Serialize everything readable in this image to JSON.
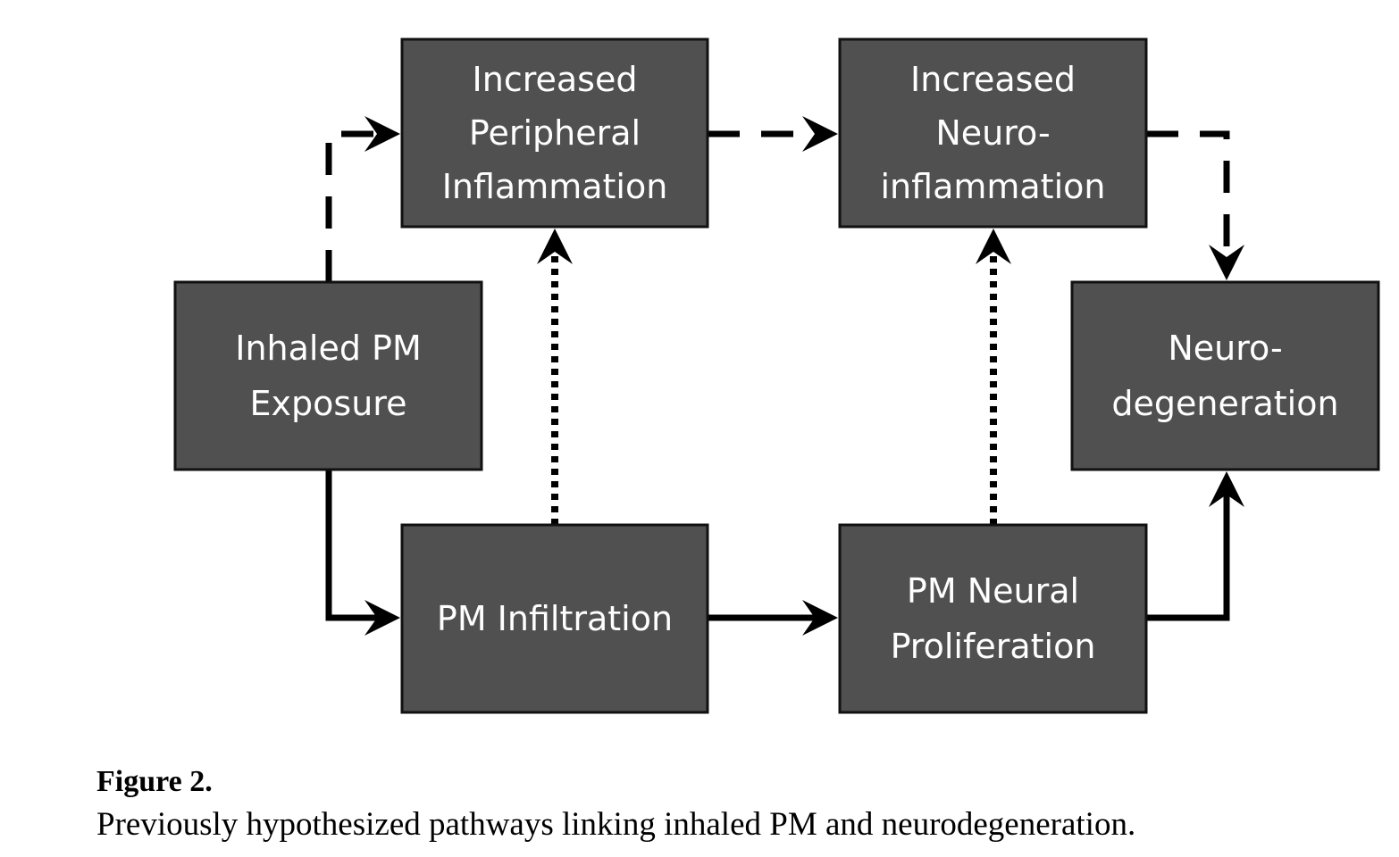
{
  "colors": {
    "box_fill": "#505050",
    "box_text": "#ffffff",
    "arrow": "#000000"
  },
  "nodes": {
    "inhaled": {
      "lines": [
        "Inhaled PM",
        "Exposure"
      ]
    },
    "peripheral": {
      "lines": [
        "Increased",
        "Peripheral",
        "Inflammation"
      ]
    },
    "neuroinflammation": {
      "lines": [
        "Increased",
        "Neuro-",
        "inflammation"
      ]
    },
    "neurodegeneration": {
      "lines": [
        "Neuro-",
        "degeneration"
      ]
    },
    "infiltration": {
      "lines": [
        "PM Infiltration"
      ]
    },
    "proliferation": {
      "lines": [
        "PM Neural",
        "Proliferation"
      ]
    }
  },
  "edges": [
    {
      "from": "inhaled",
      "to": "peripheral",
      "style": "dashed"
    },
    {
      "from": "peripheral",
      "to": "neuroinflammation",
      "style": "dashed"
    },
    {
      "from": "neuroinflammation",
      "to": "neurodegeneration",
      "style": "dashed"
    },
    {
      "from": "inhaled",
      "to": "infiltration",
      "style": "solid"
    },
    {
      "from": "infiltration",
      "to": "proliferation",
      "style": "solid"
    },
    {
      "from": "proliferation",
      "to": "neurodegeneration",
      "style": "solid"
    },
    {
      "from": "infiltration",
      "to": "peripheral",
      "style": "dotted"
    },
    {
      "from": "proliferation",
      "to": "neuroinflammation",
      "style": "dotted"
    }
  ],
  "caption": {
    "title": "Figure 2.",
    "text": "Previously hypothesized pathways linking inhaled PM and neurodegeneration."
  }
}
